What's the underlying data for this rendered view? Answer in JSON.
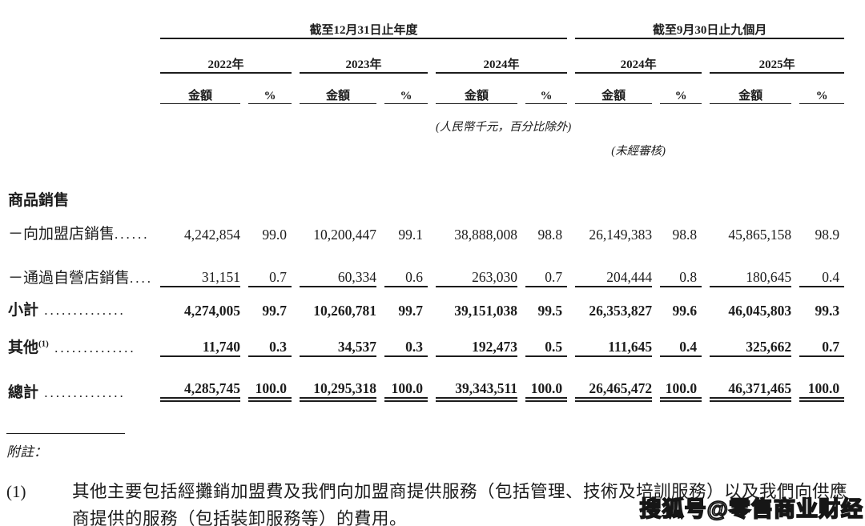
{
  "table": {
    "period_groups": [
      {
        "title": "截至12月31日止年度"
      },
      {
        "title": "截至9月30日止九個月"
      }
    ],
    "years": [
      "2022年",
      "2023年",
      "2024年",
      "2024年",
      "2025年"
    ],
    "col_headers": {
      "amount": "金額",
      "percent": "%"
    },
    "unit_note": "(人民幣千元，百分比除外)",
    "unaudited_note": "(未經審核)",
    "section_title": "商品銷售",
    "rows": [
      {
        "label": "－向加盟店銷售",
        "sup": "",
        "leader": "......",
        "values": [
          "4,242,854",
          "99.0",
          "10,200,447",
          "99.1",
          "38,888,008",
          "98.8",
          "26,149,383",
          "98.8",
          "45,865,158",
          "98.9"
        ]
      },
      {
        "label": "－通過自營店銷售",
        "sup": "",
        "leader": "....",
        "values": [
          "31,151",
          "0.7",
          "60,334",
          "0.6",
          "263,030",
          "0.7",
          "204,444",
          "0.8",
          "180,645",
          "0.4"
        ]
      },
      {
        "label": "小計",
        "sup": "",
        "leader": " ..............",
        "values": [
          "4,274,005",
          "99.7",
          "10,260,781",
          "99.7",
          "39,151,038",
          "99.5",
          "26,353,827",
          "99.6",
          "46,045,803",
          "99.3"
        ]
      },
      {
        "label": "其他",
        "sup": "(1)",
        "leader": " ..............",
        "values": [
          "11,740",
          "0.3",
          "34,537",
          "0.3",
          "192,473",
          "0.5",
          "111,645",
          "0.4",
          "325,662",
          "0.7"
        ]
      },
      {
        "label": "總計",
        "sup": "",
        "leader": " ..............",
        "values": [
          "4,285,745",
          "100.0",
          "10,295,318",
          "100.0",
          "39,343,511",
          "100.0",
          "26,465,472",
          "100.0",
          "46,371,465",
          "100.0"
        ]
      }
    ]
  },
  "footnotes": {
    "heading": "附註：",
    "items": [
      {
        "number": "(1)",
        "text": "其他主要包括經攤銷加盟費及我們向加盟商提供服務（包括管理、技術及培訓服務）以及我們向供應商提供的服務（包括裝卸服務等）的費用。"
      }
    ]
  },
  "watermark": {
    "text": "搜狐号@零售商业财经"
  }
}
